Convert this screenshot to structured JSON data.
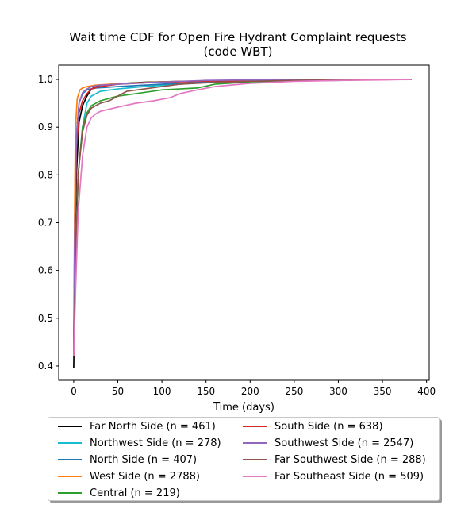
{
  "chart_data": {
    "type": "line",
    "title_lines": [
      "Wait time CDF for Open Fire Hydrant Complaint  requests",
      "(code WBT)"
    ],
    "xlabel": "Time (days)",
    "ylabel": "",
    "xlim": [
      -17,
      403
    ],
    "ylim": [
      0.37,
      1.03
    ],
    "xticks": [
      0,
      50,
      100,
      150,
      200,
      250,
      300,
      350,
      400
    ],
    "yticks": [
      0.4,
      0.5,
      0.6,
      0.7,
      0.8,
      0.9,
      1.0
    ],
    "ytick_labels": [
      "0.4",
      "0.5",
      "0.6",
      "0.7",
      "0.8",
      "0.9",
      "1.0"
    ],
    "grid": false,
    "legend_position": "below",
    "legend_columns": 2,
    "series": [
      {
        "name": "Far North Side (n = 461)",
        "color": "#000000",
        "x": [
          0,
          1,
          3,
          6,
          10,
          15,
          20,
          30,
          50,
          80,
          120,
          160,
          200,
          250,
          300,
          350,
          383
        ],
        "y": [
          0.395,
          0.55,
          0.8,
          0.91,
          0.945,
          0.965,
          0.98,
          0.988,
          0.991,
          0.994,
          0.996,
          0.997,
          0.998,
          0.999,
          0.999,
          1.0,
          1.0
        ]
      },
      {
        "name": "Northwest Side (n = 278)",
        "color": "#17becf",
        "x": [
          0,
          2,
          5,
          10,
          15,
          20,
          30,
          50,
          80,
          120,
          160,
          200,
          250,
          300,
          350,
          383
        ],
        "y": [
          0.42,
          0.62,
          0.8,
          0.9,
          0.95,
          0.965,
          0.975,
          0.98,
          0.985,
          0.99,
          0.995,
          0.998,
          0.999,
          1.0,
          1.0,
          1.0
        ]
      },
      {
        "name": "North Side (n = 407)",
        "color": "#1f77b4",
        "x": [
          0,
          1,
          3,
          6,
          10,
          15,
          25,
          50,
          80,
          120,
          160,
          200,
          250,
          300,
          350,
          383
        ],
        "y": [
          0.43,
          0.65,
          0.88,
          0.95,
          0.97,
          0.978,
          0.982,
          0.985,
          0.988,
          0.992,
          0.995,
          0.998,
          0.999,
          1.0,
          1.0,
          1.0
        ]
      },
      {
        "name": "West Side (n = 2788)",
        "color": "#ff7f0e",
        "x": [
          0,
          1,
          2,
          4,
          7,
          10,
          15,
          25,
          50,
          100,
          150,
          200,
          250,
          300,
          350,
          383
        ],
        "y": [
          0.44,
          0.72,
          0.9,
          0.96,
          0.978,
          0.982,
          0.985,
          0.988,
          0.991,
          0.995,
          0.997,
          0.998,
          0.999,
          1.0,
          1.0,
          1.0
        ]
      },
      {
        "name": "Central (n = 219)",
        "color": "#2ca02c",
        "x": [
          0,
          2,
          5,
          10,
          15,
          20,
          30,
          50,
          70,
          100,
          120,
          140,
          160,
          200,
          250,
          300,
          350,
          383
        ],
        "y": [
          0.42,
          0.6,
          0.8,
          0.9,
          0.93,
          0.945,
          0.955,
          0.965,
          0.97,
          0.978,
          0.98,
          0.982,
          0.99,
          0.995,
          0.997,
          0.998,
          1.0,
          1.0
        ]
      },
      {
        "name": "South Side (n = 638)",
        "color": "#d62728",
        "x": [
          0,
          1,
          3,
          6,
          10,
          15,
          20,
          30,
          50,
          80,
          120,
          160,
          200,
          250,
          300,
          350,
          383
        ],
        "y": [
          0.42,
          0.62,
          0.85,
          0.93,
          0.955,
          0.97,
          0.98,
          0.985,
          0.99,
          0.993,
          0.995,
          0.997,
          0.998,
          0.999,
          1.0,
          1.0,
          1.0
        ]
      },
      {
        "name": "Southwest Side (n = 2547)",
        "color": "#9467bd",
        "x": [
          0,
          1,
          3,
          6,
          10,
          15,
          20,
          30,
          50,
          80,
          120,
          150,
          200,
          250,
          300,
          350,
          383
        ],
        "y": [
          0.43,
          0.66,
          0.88,
          0.95,
          0.972,
          0.98,
          0.985,
          0.988,
          0.99,
          0.993,
          0.996,
          0.998,
          0.999,
          0.999,
          1.0,
          1.0,
          1.0
        ]
      },
      {
        "name": "Far Southwest Side (n = 288)",
        "color": "#8c564b",
        "x": [
          0,
          2,
          5,
          10,
          15,
          20,
          25,
          30,
          40,
          50,
          60,
          80,
          100,
          120,
          150,
          200,
          250,
          300,
          350,
          383
        ],
        "y": [
          0.42,
          0.6,
          0.8,
          0.89,
          0.925,
          0.94,
          0.945,
          0.95,
          0.955,
          0.965,
          0.975,
          0.98,
          0.985,
          0.99,
          0.993,
          0.996,
          0.998,
          0.999,
          1.0,
          1.0
        ]
      },
      {
        "name": "Far Southeast Side (n = 509)",
        "color": "#e377c2",
        "x": [
          0,
          2,
          5,
          10,
          15,
          20,
          25,
          30,
          50,
          70,
          90,
          110,
          120,
          140,
          160,
          200,
          250,
          300,
          350,
          383
        ],
        "y": [
          0.42,
          0.55,
          0.72,
          0.84,
          0.9,
          0.92,
          0.928,
          0.933,
          0.942,
          0.95,
          0.955,
          0.962,
          0.97,
          0.978,
          0.985,
          0.992,
          0.996,
          0.998,
          0.999,
          1.0
        ]
      }
    ]
  }
}
